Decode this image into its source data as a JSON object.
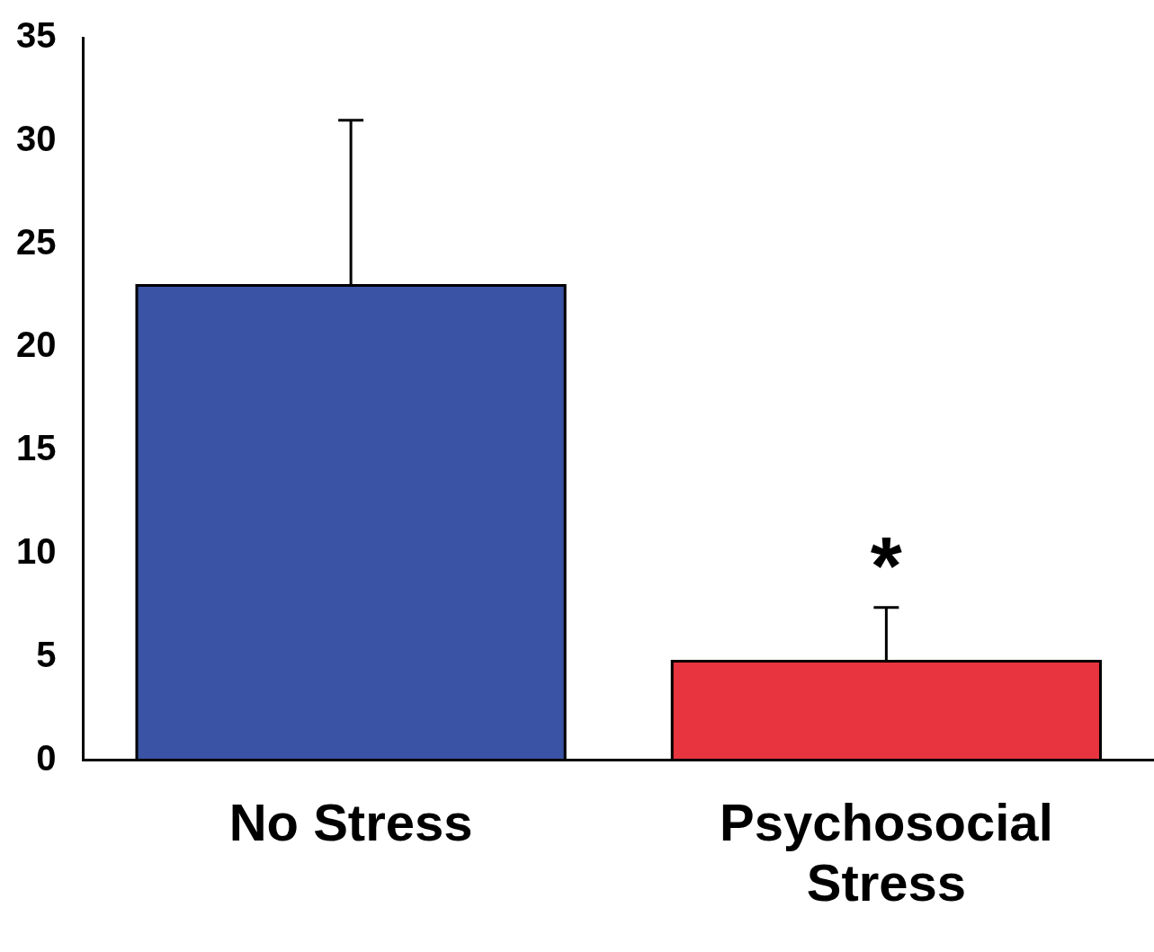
{
  "chart_data": {
    "type": "bar",
    "categories": [
      "No Stress",
      "Psychosocial Stress"
    ],
    "values": [
      23,
      4.8
    ],
    "colors": [
      "#3a53a4",
      "#e8343e"
    ],
    "errors": [
      [
        23,
        31
      ],
      [
        4.8,
        7.4
      ]
    ],
    "ylim": [
      0,
      35
    ],
    "yticks": [
      0,
      5,
      10,
      15,
      20,
      25,
      30,
      35
    ],
    "grid": false,
    "legend": false,
    "annotations": [
      "*"
    ]
  }
}
